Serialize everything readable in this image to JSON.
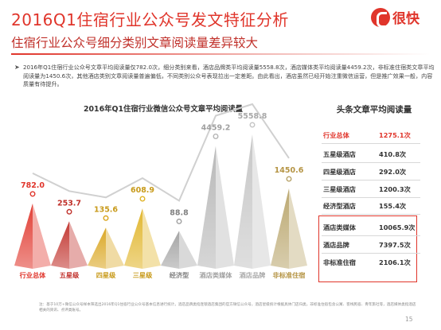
{
  "header": {
    "title": "2016Q1住宿行业公众号发文特征分析",
    "subtitle": "住宿行业公众号细分类别文章阅读量差异较大",
    "brand": "很快"
  },
  "summary": {
    "bullet_icon": "arrow-bullet-icon",
    "text": "2016年Q1住宿行业公众号文章平均阅读量仅782.0次，细分类别来看，酒店品牌类平均阅读量5558.8次，酒店媒体类平均阅读量4459.2次，非标准住宿类文章平均阅读量为1450.6次，其他酒店类别文章阅读量普遍偏低，不同类别公众号表现拉出一定差距。由此看出，酒店虽然已经开始注重微信运营，但是推广效果一般，内容质量有待提升。"
  },
  "chart_data": {
    "type": "bar",
    "shape": "pyramid",
    "title": "2016年Q1住宿行业微信公众号文章平均阅读量",
    "categories": [
      "行业总体",
      "五星级",
      "四星级",
      "三星级",
      "经济型",
      "酒店类媒体",
      "酒店品牌",
      "非标准住宿"
    ],
    "values": [
      782.0,
      253.7,
      135.6,
      608.9,
      88.8,
      4459.2,
      5558.8,
      1450.6
    ],
    "value_labels": [
      "782.0",
      "253.7",
      "135.6",
      "608.9",
      "88.8",
      "4459.2",
      "5558.8",
      "1450.6"
    ],
    "colors": [
      "#e0352b",
      "#c0302a",
      "#d9a41c",
      "#e0b325",
      "#a0a0a0",
      "#b5b5b5",
      "#c4c4c4",
      "#b8a46a"
    ],
    "label_colors": [
      "#e0352b",
      "#c0302a",
      "#c89a1a",
      "#c89a1a",
      "#808080",
      "#a0a0a0",
      "#a8a8a8",
      "#b59444"
    ],
    "ylim": [
      0,
      5800
    ],
    "grid": false,
    "legend": "none",
    "arrow_icon": "trend-arrow-icon"
  },
  "table": {
    "title": "头条文章平均阅读量",
    "rows": [
      {
        "name": "行业总体",
        "value": "1275.1次"
      },
      {
        "name": "五星级酒店",
        "value": "410.8次"
      },
      {
        "name": "四星级酒店",
        "value": "292.0次"
      },
      {
        "name": "三星级酒店",
        "value": "1200.3次"
      },
      {
        "name": "经济型酒店",
        "value": "155.4次"
      },
      {
        "name": "酒店类媒体",
        "value": "10065.9次"
      },
      {
        "name": "酒店品牌",
        "value": "7397.5次"
      },
      {
        "name": "非标准住宿",
        "value": "2106.1次"
      }
    ]
  },
  "footer": {
    "note": "注：基于10万+微信公众号样本筛选出2016年Q1住宿行业公众号基本信息进行统计。酒店品牌类指连锁酒店集团的官方微信公众号，酒店星级统计根据具体门店归类，非标准住宿包含公寓、客栈民宿、青年旅社等，酒店媒体类指酒店相关的资讯、点评类账号。",
    "page": "15"
  }
}
